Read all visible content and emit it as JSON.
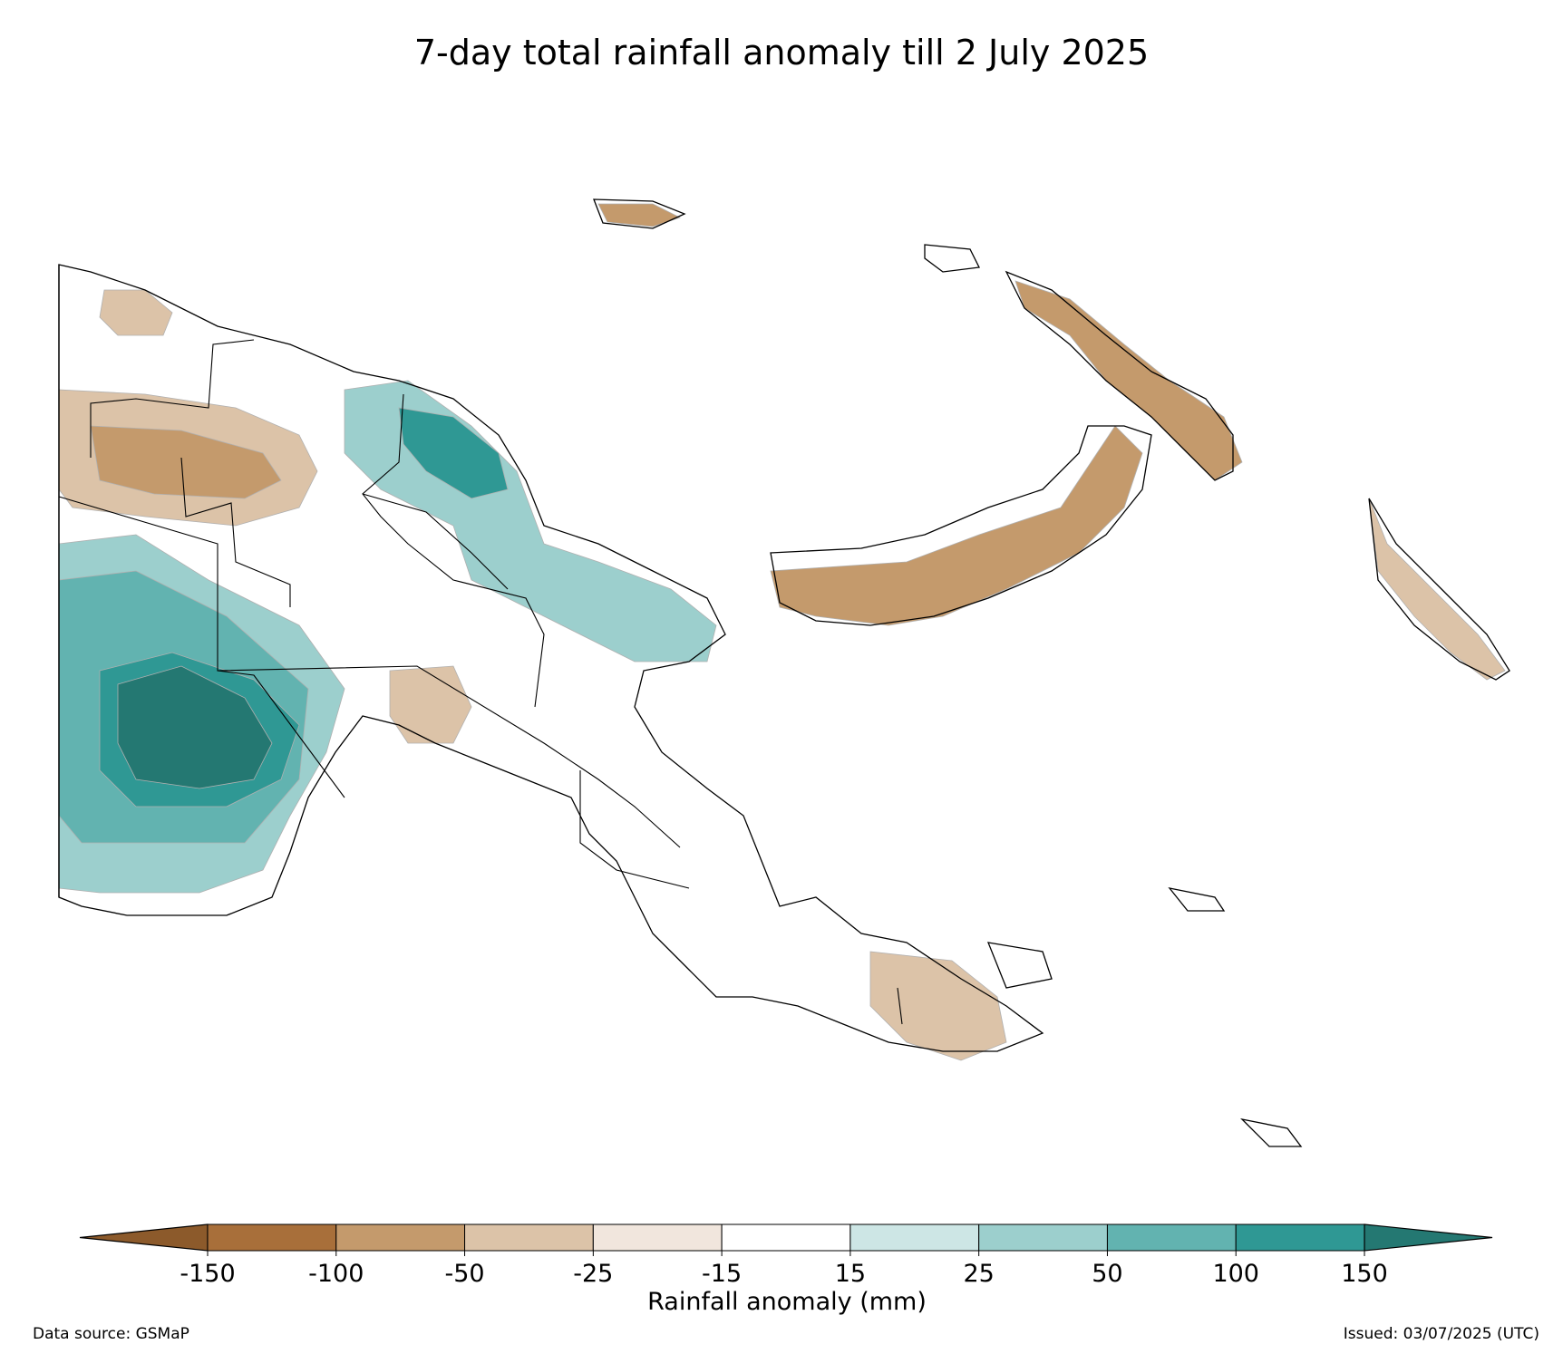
{
  "title": "7-day total rainfall anomaly till 2 July 2025",
  "colorbar": {
    "label": "Rainfall anomaly (mm)",
    "ticks": [
      "-150",
      "-100",
      "-50",
      "-25",
      "-15",
      "15",
      "25",
      "50",
      "100",
      "150"
    ],
    "colors": [
      "#a86f3a",
      "#c49a6c",
      "#dcc3a8",
      "#f1e6dd",
      "#ffffff",
      "#cde6e5",
      "#9ccfcd",
      "#62b3b0",
      "#2f9894"
    ],
    "extend_low_color": "#8c5a2b",
    "extend_high_color": "#247872"
  },
  "footer": {
    "source": "Data source: GSMaP",
    "issued": "Issued: 03/07/2025 (UTC)"
  }
}
